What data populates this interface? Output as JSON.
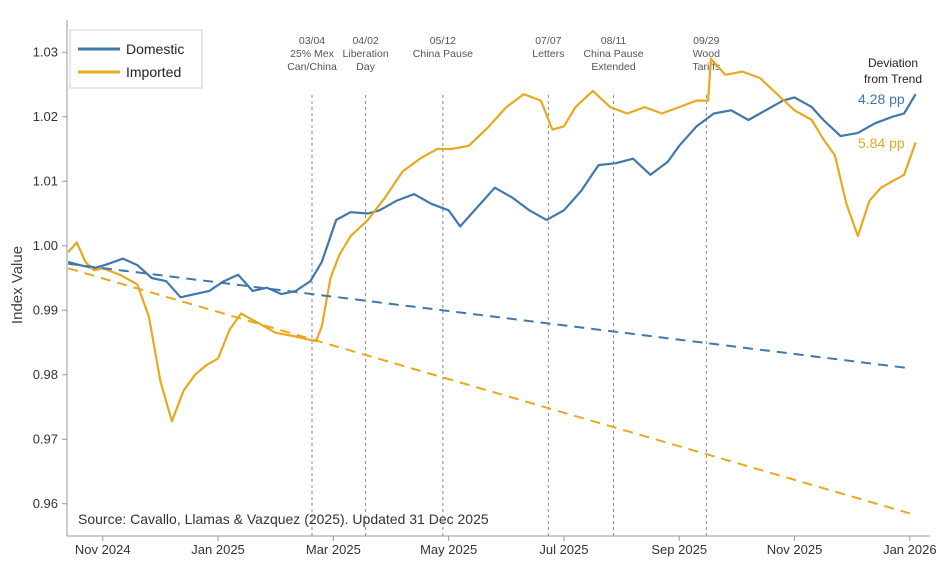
{
  "chart_data": {
    "type": "line",
    "ylabel": "Index Value",
    "ylim": [
      0.955,
      1.035
    ],
    "yticks": [
      "0.96",
      "0.97",
      "0.98",
      "0.99",
      "1.00",
      "1.01",
      "1.02",
      "1.03"
    ],
    "ytick_values": [
      0.96,
      0.97,
      0.98,
      0.99,
      1.0,
      1.01,
      1.02,
      1.03
    ],
    "xlim": [
      -0.12,
      14.85
    ],
    "xticks": [
      "Nov 2024",
      "Jan 2025",
      "Mar 2025",
      "May 2025",
      "Jul 2025",
      "Sep 2025",
      "Nov 2025",
      "Jan 2026"
    ],
    "xtick_values": [
      0.5,
      2.5,
      4.5,
      6.5,
      8.5,
      10.5,
      12.5,
      14.5
    ],
    "legend": [
      "Domestic",
      "Imported"
    ],
    "colors": {
      "domestic": "#4178AB",
      "imported": "#E8A920",
      "vline": "#888888"
    },
    "source": "Source: Cavallo, Llamas & Vazquez (2025). Updated 31 Dec 2025",
    "deviation": {
      "title_line1": "Deviation",
      "title_line2": "from Trend",
      "domestic": "4.28 pp",
      "imported": "5.84 pp"
    },
    "annotations": [
      {
        "date": "03/04",
        "lines": [
          "03/04",
          "25% Mex",
          "Can/China"
        ],
        "x": 4.13
      },
      {
        "date": "04/02",
        "lines": [
          "04/02",
          "Liberation",
          "Day"
        ],
        "x": 5.06
      },
      {
        "date": "05/12",
        "lines": [
          "05/12",
          "China Pause"
        ],
        "x": 6.4
      },
      {
        "date": "07/07",
        "lines": [
          "07/07",
          "Letters"
        ],
        "x": 8.23
      },
      {
        "date": "08/11",
        "lines": [
          "08/11",
          "China Pause",
          "Extended"
        ],
        "x": 9.36
      },
      {
        "date": "09/29",
        "lines": [
          "09/29",
          "Wood",
          "Tariffs"
        ],
        "x": 10.97
      }
    ],
    "series": [
      {
        "name": "Domestic",
        "style": "solid",
        "x": [
          -0.1,
          0.1,
          0.35,
          0.6,
          0.85,
          1.1,
          1.35,
          1.6,
          1.85,
          2.1,
          2.35,
          2.6,
          2.85,
          3.1,
          3.35,
          3.6,
          3.85,
          4.1,
          4.3,
          4.55,
          4.8,
          5.1,
          5.3,
          5.6,
          5.9,
          6.2,
          6.5,
          6.7,
          7.0,
          7.3,
          7.6,
          7.9,
          8.2,
          8.5,
          8.8,
          9.1,
          9.4,
          9.7,
          10.0,
          10.3,
          10.5,
          10.8,
          11.1,
          11.4,
          11.7,
          12.0,
          12.3,
          12.5,
          12.8,
          13.0,
          13.3,
          13.6,
          13.9,
          14.2,
          14.4,
          14.6
        ],
        "values": [
          0.9975,
          0.997,
          0.9965,
          0.9972,
          0.998,
          0.997,
          0.995,
          0.9945,
          0.992,
          0.9925,
          0.993,
          0.9945,
          0.9955,
          0.993,
          0.9935,
          0.9925,
          0.993,
          0.9945,
          0.9975,
          1.004,
          1.0052,
          1.005,
          1.0055,
          1.007,
          1.008,
          1.0065,
          1.0055,
          1.003,
          1.006,
          1.009,
          1.0075,
          1.0055,
          1.004,
          1.0055,
          1.0085,
          1.0125,
          1.0128,
          1.0135,
          1.011,
          1.013,
          1.0155,
          1.0185,
          1.0205,
          1.021,
          1.0195,
          1.021,
          1.0225,
          1.023,
          1.0215,
          1.0195,
          1.017,
          1.0175,
          1.019,
          1.02,
          1.0205,
          1.0235
        ]
      },
      {
        "name": "Imported",
        "style": "solid",
        "x": [
          -0.1,
          0.05,
          0.2,
          0.35,
          0.5,
          0.8,
          1.1,
          1.3,
          1.5,
          1.7,
          1.9,
          2.1,
          2.3,
          2.5,
          2.7,
          2.9,
          3.2,
          3.5,
          3.8,
          4.05,
          4.2,
          4.3,
          4.45,
          4.6,
          4.8,
          5.1,
          5.4,
          5.7,
          6.0,
          6.3,
          6.55,
          6.85,
          7.2,
          7.5,
          7.8,
          8.1,
          8.3,
          8.5,
          8.7,
          9.0,
          9.3,
          9.6,
          9.9,
          10.2,
          10.5,
          10.8,
          11.0,
          11.05,
          11.3,
          11.6,
          11.9,
          12.2,
          12.5,
          12.8,
          13.0,
          13.2,
          13.4,
          13.6,
          13.8,
          14.0,
          14.2,
          14.4,
          14.6
        ],
        "values": [
          0.999,
          1.0005,
          0.9975,
          0.9962,
          0.9965,
          0.9955,
          0.994,
          0.989,
          0.979,
          0.9728,
          0.9775,
          0.98,
          0.9815,
          0.9825,
          0.987,
          0.9895,
          0.988,
          0.9865,
          0.986,
          0.9855,
          0.9852,
          0.9875,
          0.995,
          0.9985,
          1.0015,
          1.004,
          1.0075,
          1.0115,
          1.0135,
          1.015,
          1.015,
          1.0155,
          1.0185,
          1.0215,
          1.0235,
          1.0225,
          1.018,
          1.0185,
          1.0215,
          1.024,
          1.0215,
          1.0205,
          1.0215,
          1.0205,
          1.0215,
          1.0225,
          1.0225,
          1.029,
          1.0265,
          1.027,
          1.026,
          1.0235,
          1.021,
          1.0195,
          1.0165,
          1.014,
          1.0065,
          1.0015,
          1.007,
          1.009,
          1.01,
          1.011,
          1.016
        ]
      },
      {
        "name": "Domestic trend",
        "style": "dashed",
        "x": [
          -0.1,
          14.5
        ],
        "values": [
          0.9972,
          0.981
        ]
      },
      {
        "name": "Imported trend",
        "style": "dashed",
        "x": [
          -0.1,
          14.5
        ],
        "values": [
          0.9965,
          0.9585
        ]
      }
    ]
  }
}
